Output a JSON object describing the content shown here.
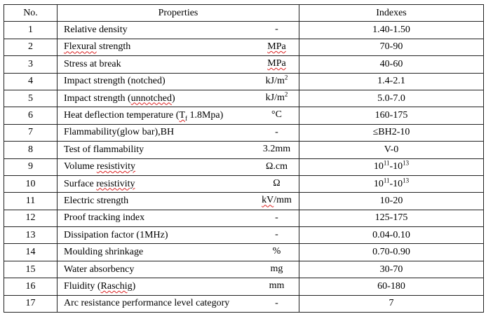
{
  "headers": {
    "no": "No.",
    "properties": "Properties",
    "indexes": "Indexes"
  },
  "rows": [
    {
      "no": "1",
      "name": "Relative density",
      "unit": "-",
      "index": "1.40-1.50"
    },
    {
      "no": "2",
      "name": "Flexural strength",
      "unit": "MPa",
      "index": "70-90"
    },
    {
      "no": "3",
      "name": "Stress at break",
      "unit": "MPa",
      "index": "40-60"
    },
    {
      "no": "4",
      "name": "Impact strength (notched)",
      "unit": "kJ/m²",
      "index": "1.4-2.1"
    },
    {
      "no": "5",
      "name": "Impact strength (unnotched)",
      "unit": "kJ/m²",
      "index": "5.0-7.0"
    },
    {
      "no": "6",
      "name": "Heat deflection temperature (Tf 1.8Mpa)",
      "unit": "°C",
      "index": "160-175"
    },
    {
      "no": "7",
      "name": "Flammability(glow bar),BH",
      "unit": "-",
      "index": "≤BH2-10"
    },
    {
      "no": "8",
      "name": "Test of flammability",
      "unit": "3.2mm",
      "index": "V-0"
    },
    {
      "no": "9",
      "name": "Volume resistivity",
      "unit": "Ω.cm",
      "index": "10¹¹-10¹³"
    },
    {
      "no": "10",
      "name": "Surface resistivity",
      "unit": "Ω",
      "index": "10¹¹-10¹³"
    },
    {
      "no": "11",
      "name": "Electric strength",
      "unit": "kV/mm",
      "index": "10-20"
    },
    {
      "no": "12",
      "name": "Proof tracking index",
      "unit": "-",
      "index": "125-175"
    },
    {
      "no": "13",
      "name": "Dissipation factor (1MHz)",
      "unit": "-",
      "index": "0.04-0.10"
    },
    {
      "no": "14",
      "name": "Moulding shrinkage",
      "unit": "%",
      "index": "0.70-0.90"
    },
    {
      "no": "15",
      "name": "Water absorbency",
      "unit": "mg",
      "index": "30-70"
    },
    {
      "no": "16",
      "name": "Fluidity (Raschig)",
      "unit": "mm",
      "index": "60-180"
    },
    {
      "no": "17",
      "name": "Arc resistance performance level category",
      "unit": "-",
      "index": "7"
    }
  ]
}
